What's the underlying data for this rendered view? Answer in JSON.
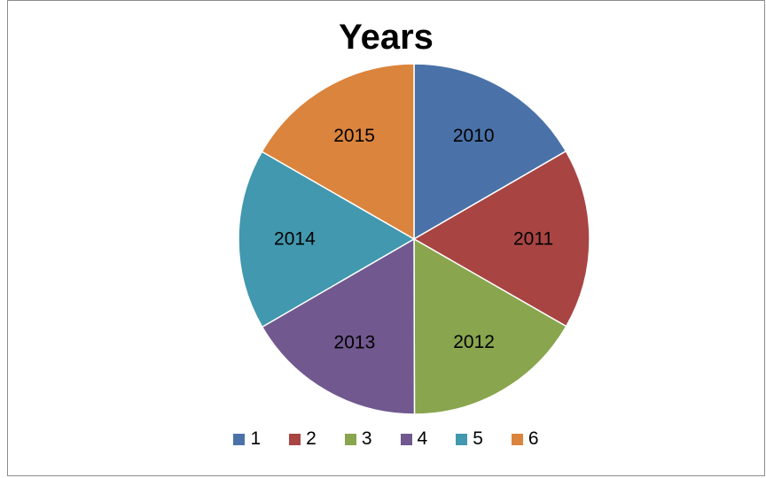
{
  "chart_data": {
    "type": "pie",
    "title": "Years",
    "categories": [
      "1",
      "2",
      "3",
      "4",
      "5",
      "6"
    ],
    "slice_labels": [
      "2010",
      "2011",
      "2012",
      "2013",
      "2014",
      "2015"
    ],
    "values": [
      2010,
      2011,
      2012,
      2013,
      2014,
      2015
    ],
    "colors": [
      "#4a72a8",
      "#a84442",
      "#89a54e",
      "#71588f",
      "#4198af",
      "#db843d"
    ],
    "legend_position": "bottom",
    "start_angle": "12 o'clock, clockwise"
  }
}
